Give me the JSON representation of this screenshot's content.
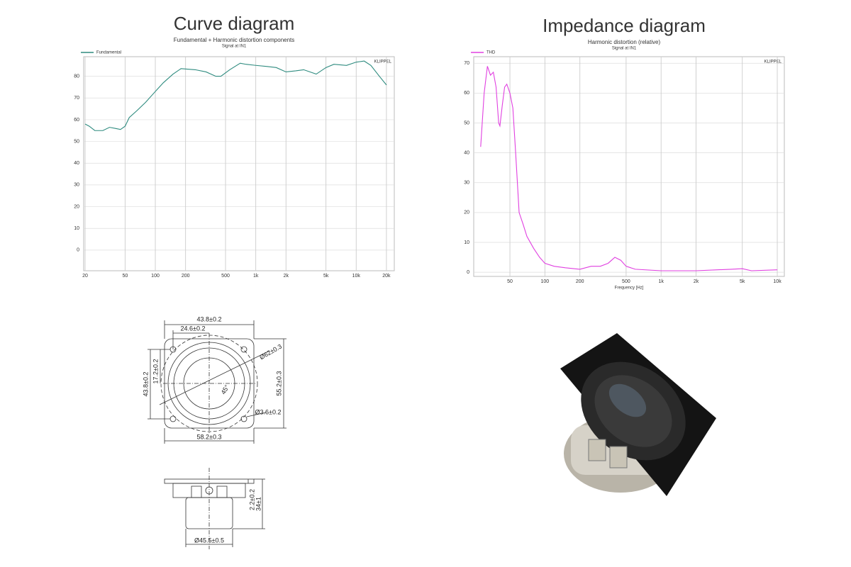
{
  "chart_data": [
    {
      "type": "line",
      "title": "Curve diagram",
      "subtitle": "Fundamental + Harmonic distortion components",
      "note": "Signal at IN1",
      "watermark": "KLIPPEL",
      "log_x": true,
      "grid": true,
      "legend": "top-left",
      "xlim": [
        19.35,
        23950
      ],
      "ylim": [
        -9.5,
        89
      ],
      "xticks": [
        20,
        50,
        100,
        200,
        500,
        {
          "value": 1000,
          "label": "1k"
        },
        {
          "value": 2000,
          "label": "2k"
        },
        {
          "value": 5000,
          "label": "5k"
        },
        {
          "value": 10000,
          "label": "10k"
        },
        {
          "value": 20000,
          "label": "20k"
        }
      ],
      "yticks": [
        0,
        10,
        20,
        30,
        40,
        50,
        60,
        70,
        80
      ],
      "x": [
        20,
        22,
        25,
        30,
        35,
        40,
        45,
        50,
        55,
        65,
        80,
        100,
        120,
        150,
        180,
        250,
        320,
        400,
        450,
        550,
        700,
        800,
        1000,
        1300,
        1600,
        2000,
        2500,
        3000,
        4000,
        5000,
        6000,
        8000,
        10000,
        12000,
        14000,
        17000,
        20000
      ],
      "series": [
        {
          "name": "Fundamental",
          "color": "#2e8b7f",
          "values": [
            58,
            57,
            55,
            55,
            56.5,
            56,
            55.5,
            57,
            61,
            64,
            68,
            73,
            77,
            81,
            83.5,
            83,
            82,
            80,
            80,
            83,
            86,
            85.5,
            85,
            84.5,
            84,
            82,
            82.5,
            83,
            81,
            84,
            85.5,
            85,
            86.5,
            87,
            85,
            80,
            76
          ]
        }
      ]
    },
    {
      "type": "line",
      "title": "Impedance diagram",
      "subtitle": "Harmonic distortion (relative)",
      "note": "Signal at IN1",
      "watermark": "KLIPPEL",
      "xlabel": "Frequency [Hz]",
      "log_x": true,
      "grid": true,
      "legend": "top-left",
      "xlim": [
        24.4,
        11500
      ],
      "ylim": [
        -1.4,
        72.2
      ],
      "xticks": [
        50,
        100,
        200,
        500,
        {
          "value": 1000,
          "label": "1k"
        },
        {
          "value": 2000,
          "label": "2k"
        },
        {
          "value": 5000,
          "label": "5k"
        },
        {
          "value": 10000,
          "label": "10k"
        }
      ],
      "yticks": [
        0,
        10,
        20,
        30,
        40,
        50,
        60,
        70
      ],
      "x": [
        28,
        30,
        32,
        34,
        36,
        38,
        40,
        41,
        43,
        45,
        47,
        50,
        53,
        56,
        60,
        65,
        70,
        80,
        90,
        100,
        120,
        150,
        200,
        250,
        300,
        350,
        400,
        450,
        500,
        600,
        1000,
        2000,
        4000,
        5000,
        6000,
        10000
      ],
      "series": [
        {
          "name": "THD",
          "color": "#e040e0",
          "values": [
            42,
            60,
            69,
            66,
            67,
            62,
            50,
            49,
            56,
            62,
            63,
            60,
            55,
            40,
            20,
            16,
            12,
            8,
            5,
            3,
            2,
            1.5,
            1,
            2,
            2,
            3,
            5,
            4,
            2,
            1,
            0.5,
            0.5,
            1,
            1.2,
            0.5,
            0.8
          ]
        }
      ]
    }
  ],
  "drawing": {
    "labels": [
      "43.8±0.2",
      "24.6±0.2",
      "Ø62±0.3",
      "17.2±0.2",
      "43.8±0.2",
      "45°",
      "55.2±0.3",
      "Ø3.6±0.2",
      "58.2±0.3",
      "2.2±0.2",
      "34±1",
      "Ø45.5±0.5"
    ]
  }
}
